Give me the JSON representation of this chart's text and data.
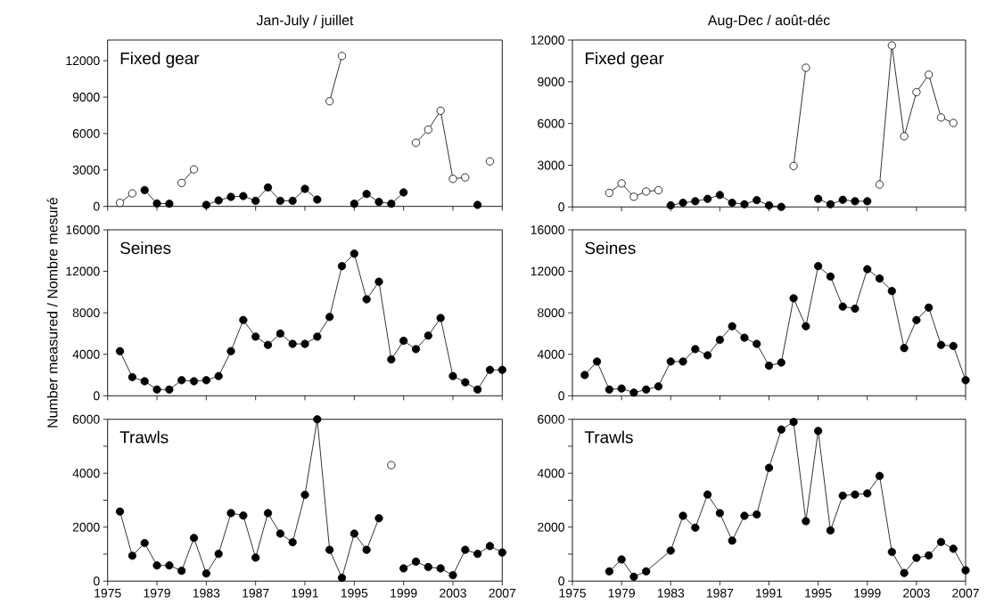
{
  "chart_data": [
    {
      "type": "line",
      "title": "Jan-July / juillet",
      "annotations": [
        "Fixed gear"
      ],
      "x": [
        1976,
        1977,
        1978,
        1979,
        1980,
        1981,
        1982,
        1983,
        1984,
        1985,
        1986,
        1987,
        1988,
        1989,
        1990,
        1991,
        1992,
        1993,
        1994,
        1995,
        1996,
        1997,
        1998,
        1999,
        2000,
        2001,
        2002,
        2003,
        2004,
        2005,
        2006
      ],
      "xlim": [
        1975,
        2007
      ],
      "xticks": [
        1975,
        1979,
        1983,
        1987,
        1991,
        1995,
        1999,
        2003,
        2007
      ],
      "ylim": [
        0,
        13700
      ],
      "yticks": [
        0,
        3000,
        6000,
        9000,
        12000
      ],
      "tick_labels": "y",
      "marker": "circle",
      "series": [
        {
          "color": "#000000",
          "values": [
            null,
            null,
            1340,
            240,
            220,
            null,
            null,
            120,
            490,
            780,
            850,
            460,
            1560,
            460,
            460,
            1440,
            560,
            null,
            null,
            220,
            1020,
            370,
            220,
            1150,
            null,
            null,
            null,
            null,
            null,
            120,
            null
          ]
        },
        {
          "color": "#ffffff",
          "values": [
            290,
            1070,
            null,
            null,
            null,
            1930,
            3050,
            null,
            null,
            null,
            null,
            null,
            null,
            null,
            null,
            null,
            null,
            8660,
            12390,
            null,
            null,
            null,
            null,
            null,
            5240,
            6320,
            7880,
            2270,
            2390,
            null,
            3710
          ]
        }
      ]
    },
    {
      "type": "line",
      "title": "Aug-Dec / août-déc",
      "annotations": [
        "Fixed gear"
      ],
      "x": [
        1978,
        1979,
        1980,
        1981,
        1982,
        1983,
        1984,
        1985,
        1986,
        1987,
        1988,
        1989,
        1990,
        1991,
        1992,
        1993,
        1994,
        1995,
        1996,
        1997,
        1998,
        1999,
        2000,
        2001,
        2002,
        2003,
        2004,
        2005,
        2006
      ],
      "xlim": [
        1975,
        2007
      ],
      "xticks": [
        1975,
        1979,
        1983,
        1987,
        1991,
        1995,
        1999,
        2003,
        2007
      ],
      "ylim": [
        0,
        12000
      ],
      "yticks": [
        0,
        3000,
        6000,
        9000,
        12000
      ],
      "tick_labels": "y",
      "marker": "circle",
      "series": [
        {
          "color": "#000000",
          "values": [
            null,
            null,
            null,
            null,
            null,
            110,
            300,
            410,
            580,
            860,
            300,
            190,
            490,
            110,
            0,
            null,
            null,
            580,
            190,
            510,
            410,
            410,
            null,
            null,
            null,
            null,
            null,
            null,
            null
          ]
        },
        {
          "color": "#ffffff",
          "values": [
            1010,
            1690,
            730,
            1110,
            1200,
            null,
            null,
            null,
            null,
            null,
            null,
            null,
            null,
            null,
            null,
            2940,
            10010,
            null,
            null,
            null,
            null,
            null,
            1610,
            11610,
            5080,
            8250,
            9510,
            6430,
            6040
          ]
        }
      ]
    },
    {
      "type": "line",
      "ylabel": "Number measured / Nombre mesuré",
      "annotations": [
        "Seines"
      ],
      "x": [
        1976,
        1977,
        1978,
        1979,
        1980,
        1981,
        1982,
        1983,
        1984,
        1985,
        1986,
        1987,
        1988,
        1989,
        1990,
        1991,
        1992,
        1993,
        1994,
        1995,
        1996,
        1997,
        1998,
        1999,
        2000,
        2001,
        2002,
        2003,
        2004,
        2005,
        2006,
        2007
      ],
      "xlim": [
        1975,
        2007
      ],
      "xticks": [
        1975,
        1979,
        1983,
        1987,
        1991,
        1995,
        1999,
        2003,
        2007
      ],
      "ylim": [
        0,
        16000
      ],
      "yticks": [
        0,
        4000,
        8000,
        12000,
        16000
      ],
      "tick_labels": "y",
      "marker": "circle",
      "series": [
        {
          "color": "#000000",
          "values": [
            4300,
            1800,
            1400,
            600,
            600,
            1500,
            1400,
            1500,
            1900,
            4300,
            7300,
            5700,
            4900,
            6000,
            5000,
            5000,
            5700,
            7600,
            12500,
            13700,
            9300,
            11000,
            3500,
            5300,
            4500,
            5800,
            7500,
            1900,
            1300,
            600,
            2500,
            2500
          ]
        }
      ]
    },
    {
      "type": "line",
      "annotations": [
        "Seines"
      ],
      "x": [
        1976,
        1977,
        1978,
        1979,
        1980,
        1981,
        1982,
        1983,
        1984,
        1985,
        1986,
        1987,
        1988,
        1989,
        1990,
        1991,
        1992,
        1993,
        1994,
        1995,
        1996,
        1997,
        1998,
        1999,
        2000,
        2001,
        2002,
        2003,
        2004,
        2005,
        2006,
        2007
      ],
      "xlim": [
        1975,
        2007
      ],
      "xticks": [
        1975,
        1979,
        1983,
        1987,
        1991,
        1995,
        1999,
        2003,
        2007
      ],
      "ylim": [
        0,
        16000
      ],
      "yticks": [
        0,
        4000,
        8000,
        12000,
        16000
      ],
      "tick_labels": "y",
      "marker": "circle",
      "series": [
        {
          "color": "#000000",
          "values": [
            2000,
            3300,
            600,
            700,
            300,
            600,
            900,
            3300,
            3300,
            4500,
            3900,
            5400,
            6700,
            5600,
            5000,
            2900,
            3200,
            9400,
            6700,
            12500,
            11500,
            8600,
            8400,
            12200,
            11300,
            10100,
            4600,
            7300,
            8500,
            4900,
            4800,
            1500
          ]
        }
      ]
    },
    {
      "type": "line",
      "annotations": [
        "Trawls"
      ],
      "x": [
        1976,
        1977,
        1978,
        1979,
        1980,
        1981,
        1982,
        1983,
        1984,
        1985,
        1986,
        1987,
        1988,
        1989,
        1990,
        1991,
        1992,
        1993,
        1994,
        1995,
        1996,
        1997,
        1998,
        1999,
        2000,
        2001,
        2002,
        2003,
        2004,
        2005,
        2006,
        2007
      ],
      "xlim": [
        1975,
        2007
      ],
      "xticks": [
        1975,
        1979,
        1983,
        1987,
        1991,
        1995,
        1999,
        2003,
        2007
      ],
      "ylim": [
        0,
        6000
      ],
      "yticks": [
        0,
        {
          "value": 1000,
          "label": null
        },
        2000,
        {
          "value": 3000,
          "label": null
        },
        4000,
        {
          "value": 5000,
          "label": null
        },
        6000
      ],
      "marker": "circle",
      "series": [
        {
          "color": "#000000",
          "values": [
            2580,
            940,
            1410,
            580,
            580,
            380,
            1600,
            280,
            1010,
            2520,
            2430,
            870,
            2520,
            1760,
            1440,
            3200,
            6000,
            1160,
            120,
            1760,
            1160,
            2330,
            null,
            470,
            720,
            520,
            470,
            220,
            1160,
            1010,
            1300,
            1060
          ]
        },
        {
          "color": "#ffffff",
          "x": [
            1998
          ],
          "values": [
            4300
          ]
        }
      ]
    },
    {
      "type": "line",
      "annotations": [
        "Trawls"
      ],
      "xlim": [
        1975,
        2007
      ],
      "xticks": [
        1975,
        1979,
        1983,
        1987,
        1991,
        1995,
        1999,
        2003,
        2007
      ],
      "ylim": [
        0,
        6000
      ],
      "yticks": [
        0,
        {
          "value": 1000,
          "label": null
        },
        2000,
        {
          "value": 3000,
          "label": null
        },
        4000,
        {
          "value": 5000,
          "label": null
        },
        6000
      ],
      "marker": "circle",
      "series": [
        {
          "color": "#000000",
          "x": [
            1978,
            1979,
            1980,
            1981,
            1983,
            1984,
            1985,
            1986,
            1987,
            1988,
            1989,
            1990,
            1991,
            1992,
            1993,
            1994,
            1995,
            1996,
            1997,
            1998,
            1999,
            2000,
            2001,
            2002,
            2003,
            2004,
            2005,
            2006,
            2007
          ],
          "values": [
            360,
            800,
            160,
            360,
            1130,
            2420,
            1980,
            3210,
            2520,
            1500,
            2420,
            2470,
            4200,
            5620,
            5900,
            2220,
            5570,
            1880,
            3170,
            3210,
            3250,
            3900,
            1080,
            300,
            860,
            950,
            1450,
            1200,
            400
          ]
        }
      ]
    }
  ]
}
